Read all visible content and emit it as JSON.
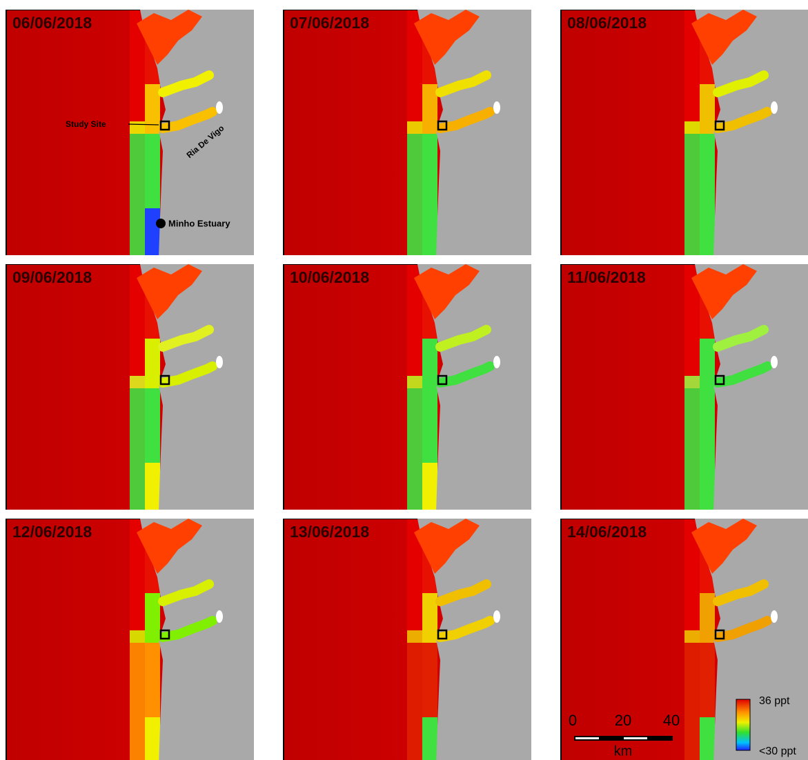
{
  "panels": [
    {
      "date": "06/06/2018"
    },
    {
      "date": "07/06/2018"
    },
    {
      "date": "08/06/2018"
    },
    {
      "date": "09/06/2018"
    },
    {
      "date": "10/06/2018"
    },
    {
      "date": "11/06/2018"
    },
    {
      "date": "12/06/2018"
    },
    {
      "date": "13/06/2018"
    },
    {
      "date": "14/06/2018"
    }
  ],
  "annotations": {
    "study_site": "Study Site",
    "ria": "Ria De Vigo",
    "minho": "Minho Estuary"
  },
  "scale_bar": {
    "ticks": [
      "0",
      "20",
      "40"
    ],
    "unit": "km"
  },
  "legend": {
    "max": "36 ppt",
    "min": "<30 ppt"
  }
}
